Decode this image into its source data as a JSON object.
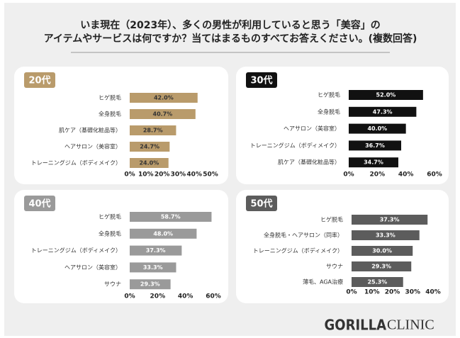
{
  "title": [
    "いま現在（2023年）、多くの男性が利用していると思う「美容」の",
    "アイテムやサービスは何ですか？当てはまるものすべてお答えください。(複数回答)"
  ],
  "brand": [
    "GORILLA",
    "CLINIC"
  ],
  "chart_data": [
    {
      "type": "hbar",
      "title": "20代",
      "color": "#b99b6b",
      "value_label_color": "#333333",
      "categories": [
        "ヒゲ脱毛",
        "全身脱毛",
        "肌ケア（基礎化粧品等）",
        "ヘアサロン（美容室）",
        "トレーニングジム（ボディメイク）"
      ],
      "values": [
        42.0,
        40.7,
        28.7,
        24.7,
        24.0
      ],
      "value_labels": [
        "42.0%",
        "40.7%",
        "28.7%",
        "24.7%",
        "24.0%"
      ],
      "xlim": [
        0,
        50
      ],
      "xticks": [
        {
          "value": 0,
          "label": "0%"
        },
        {
          "value": 10,
          "label": "10%"
        },
        {
          "value": 20,
          "label": "20%"
        },
        {
          "value": 30,
          "label": "30%"
        },
        {
          "value": 40,
          "label": "40%"
        },
        {
          "value": 50,
          "label": "50%"
        }
      ]
    },
    {
      "type": "hbar",
      "title": "30代",
      "color": "#111111",
      "value_label_color": "#ffffff",
      "categories": [
        "ヒゲ脱毛",
        "全身脱毛",
        "ヘアサロン（美容室）",
        "トレーニングジム（ボディメイク）",
        "肌ケア（基礎化粧品等）"
      ],
      "values": [
        52.0,
        47.3,
        40.0,
        36.7,
        34.7
      ],
      "value_labels": [
        "52.0%",
        "47.3%",
        "40.0%",
        "36.7%",
        "34.7%"
      ],
      "xlim": [
        0,
        60
      ],
      "xticks": [
        {
          "value": 0,
          "label": "0%"
        },
        {
          "value": 20,
          "label": "20%"
        },
        {
          "value": 40,
          "label": "40%"
        },
        {
          "value": 60,
          "label": "60%"
        }
      ]
    },
    {
      "type": "hbar",
      "title": "40代",
      "color": "#9a9a9a",
      "value_label_color": "#ffffff",
      "categories": [
        "ヒゲ脱毛",
        "全身脱毛",
        "トレーニングジム（ボディメイク）",
        "ヘアサロン（美容室）",
        "サウナ"
      ],
      "values": [
        58.7,
        48.0,
        37.3,
        33.3,
        29.3
      ],
      "value_labels": [
        "58.7%",
        "48.0%",
        "37.3%",
        "33.3%",
        "29.3%"
      ],
      "xlim": [
        0,
        60
      ],
      "xticks": [
        {
          "value": 0,
          "label": "0%"
        },
        {
          "value": 20,
          "label": "20%"
        },
        {
          "value": 40,
          "label": "40%"
        },
        {
          "value": 60,
          "label": "60%"
        }
      ]
    },
    {
      "type": "hbar",
      "title": "50代",
      "color": "#5c5c5c",
      "value_label_color": "#ffffff",
      "categories": [
        "ヒゲ脱毛",
        "全身脱毛・ヘアサロン（同率）",
        "トレーニングジム（ボディメイク）",
        "サウナ",
        "薄毛、AGA治療"
      ],
      "values": [
        37.3,
        33.3,
        30.0,
        29.3,
        25.3
      ],
      "value_labels": [
        "37.3%",
        "33.3%",
        "30.0%",
        "29.3%",
        "25.3%"
      ],
      "xlim": [
        0,
        40
      ],
      "xticks": [
        {
          "value": 0,
          "label": "0%"
        },
        {
          "value": 10,
          "label": "10%"
        },
        {
          "value": 20,
          "label": "20%"
        },
        {
          "value": 30,
          "label": "30%"
        },
        {
          "value": 40,
          "label": "40%"
        }
      ]
    }
  ]
}
